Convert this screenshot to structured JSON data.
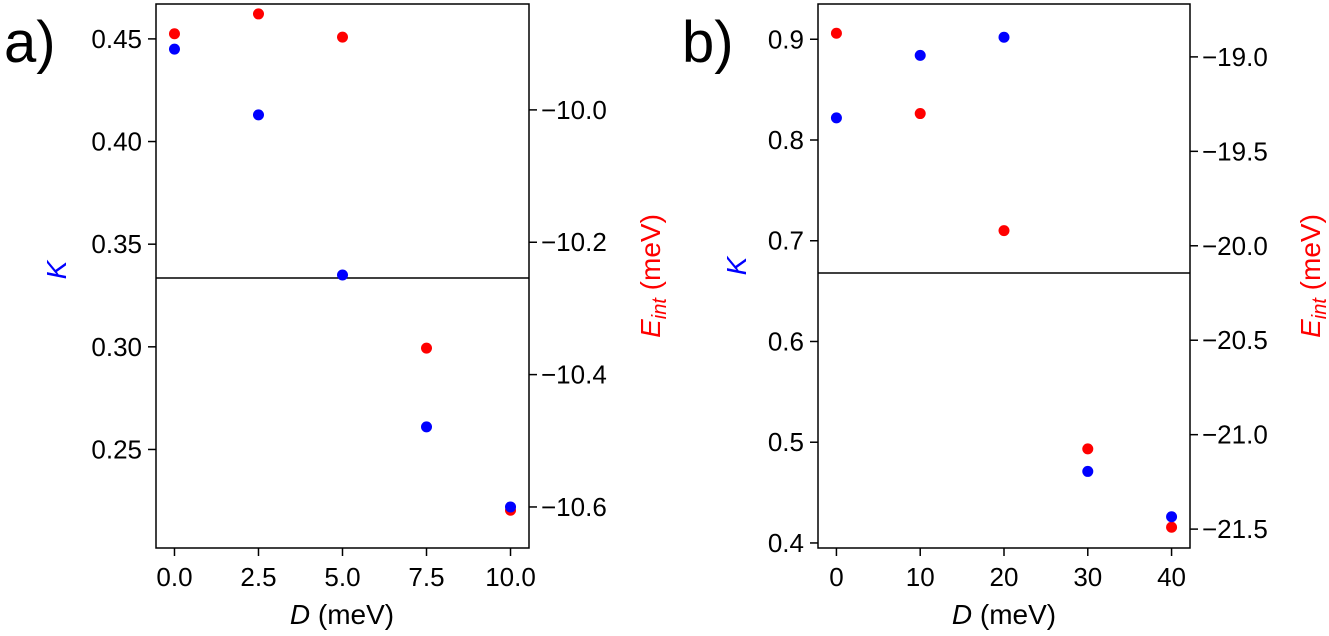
{
  "chart_data": [
    {
      "panel_label": "a)",
      "type": "scatter",
      "xlabel": {
        "italic": "D",
        "rest": " (meV)"
      },
      "ylabel_left": {
        "text": "K",
        "color": "#0000ff"
      },
      "ylabel_right": {
        "italic": "E",
        "sub": "int",
        "rest": " (meV)",
        "color": "#ff0000"
      },
      "xlim": [
        -0.55,
        10.55
      ],
      "ylim_left": [
        0.202,
        0.467
      ],
      "ylim_right": [
        -10.662,
        -9.84
      ],
      "xticks": [
        0,
        2.5,
        5,
        7.5,
        10
      ],
      "xtick_labels": [
        "0.0",
        "2.5",
        "5.0",
        "7.5",
        "10.0"
      ],
      "yticks_left": [
        0.25,
        0.3,
        0.35,
        0.4,
        0.45
      ],
      "ytick_labels_left": [
        "0.25",
        "0.30",
        "0.35",
        "0.40",
        "0.45"
      ],
      "yticks_right": [
        -10.6,
        -10.4,
        -10.2,
        -10.0
      ],
      "ytick_labels_right": [
        "−10.6",
        "−10.4",
        "−10.2",
        "−10.0"
      ],
      "hline_left": 0.3335,
      "series": [
        {
          "name": "K",
          "axis": "left",
          "color": "#0000ff",
          "x": [
            0,
            2.5,
            5,
            7.5,
            10
          ],
          "y": [
            0.445,
            0.413,
            0.335,
            0.261,
            0.222
          ]
        },
        {
          "name": "E_int",
          "axis": "right",
          "color": "#ff0000",
          "x": [
            0,
            2.5,
            5,
            7.5,
            10
          ],
          "y": [
            -9.885,
            -9.855,
            -9.89,
            -10.36,
            -10.605
          ]
        }
      ]
    },
    {
      "panel_label": "b)",
      "type": "scatter",
      "xlabel": {
        "italic": "D",
        "rest": " (meV)"
      },
      "ylabel_left": {
        "text": "K",
        "color": "#0000ff"
      },
      "ylabel_right": {
        "italic": "E",
        "sub": "int",
        "rest": " (meV)",
        "color": "#ff0000"
      },
      "xlim": [
        -2.2,
        42.2
      ],
      "ylim_left": [
        0.395,
        0.935
      ],
      "ylim_right": [
        -21.6,
        -18.72
      ],
      "xticks": [
        0,
        10,
        20,
        30,
        40
      ],
      "xtick_labels": [
        "0",
        "10",
        "20",
        "30",
        "40"
      ],
      "yticks_left": [
        0.4,
        0.5,
        0.6,
        0.7,
        0.8,
        0.9
      ],
      "ytick_labels_left": [
        "0.4",
        "0.5",
        "0.6",
        "0.7",
        "0.8",
        "0.9"
      ],
      "yticks_right": [
        -21.5,
        -21.0,
        -20.5,
        -20.0,
        -19.5,
        -19.0
      ],
      "ytick_labels_right": [
        "−21.5",
        "−21.0",
        "−20.5",
        "−20.0",
        "−19.5",
        "−19.0"
      ],
      "hline_left": 0.668,
      "series": [
        {
          "name": "K",
          "axis": "left",
          "color": "#0000ff",
          "x": [
            0,
            10,
            20,
            30,
            40
          ],
          "y": [
            0.822,
            0.884,
            0.902,
            0.471,
            0.426
          ]
        },
        {
          "name": "E_int",
          "axis": "right",
          "color": "#ff0000",
          "x": [
            0,
            10,
            20,
            30,
            40
          ],
          "y": [
            -18.875,
            -19.3,
            -19.92,
            -21.075,
            -21.49
          ]
        }
      ]
    }
  ]
}
